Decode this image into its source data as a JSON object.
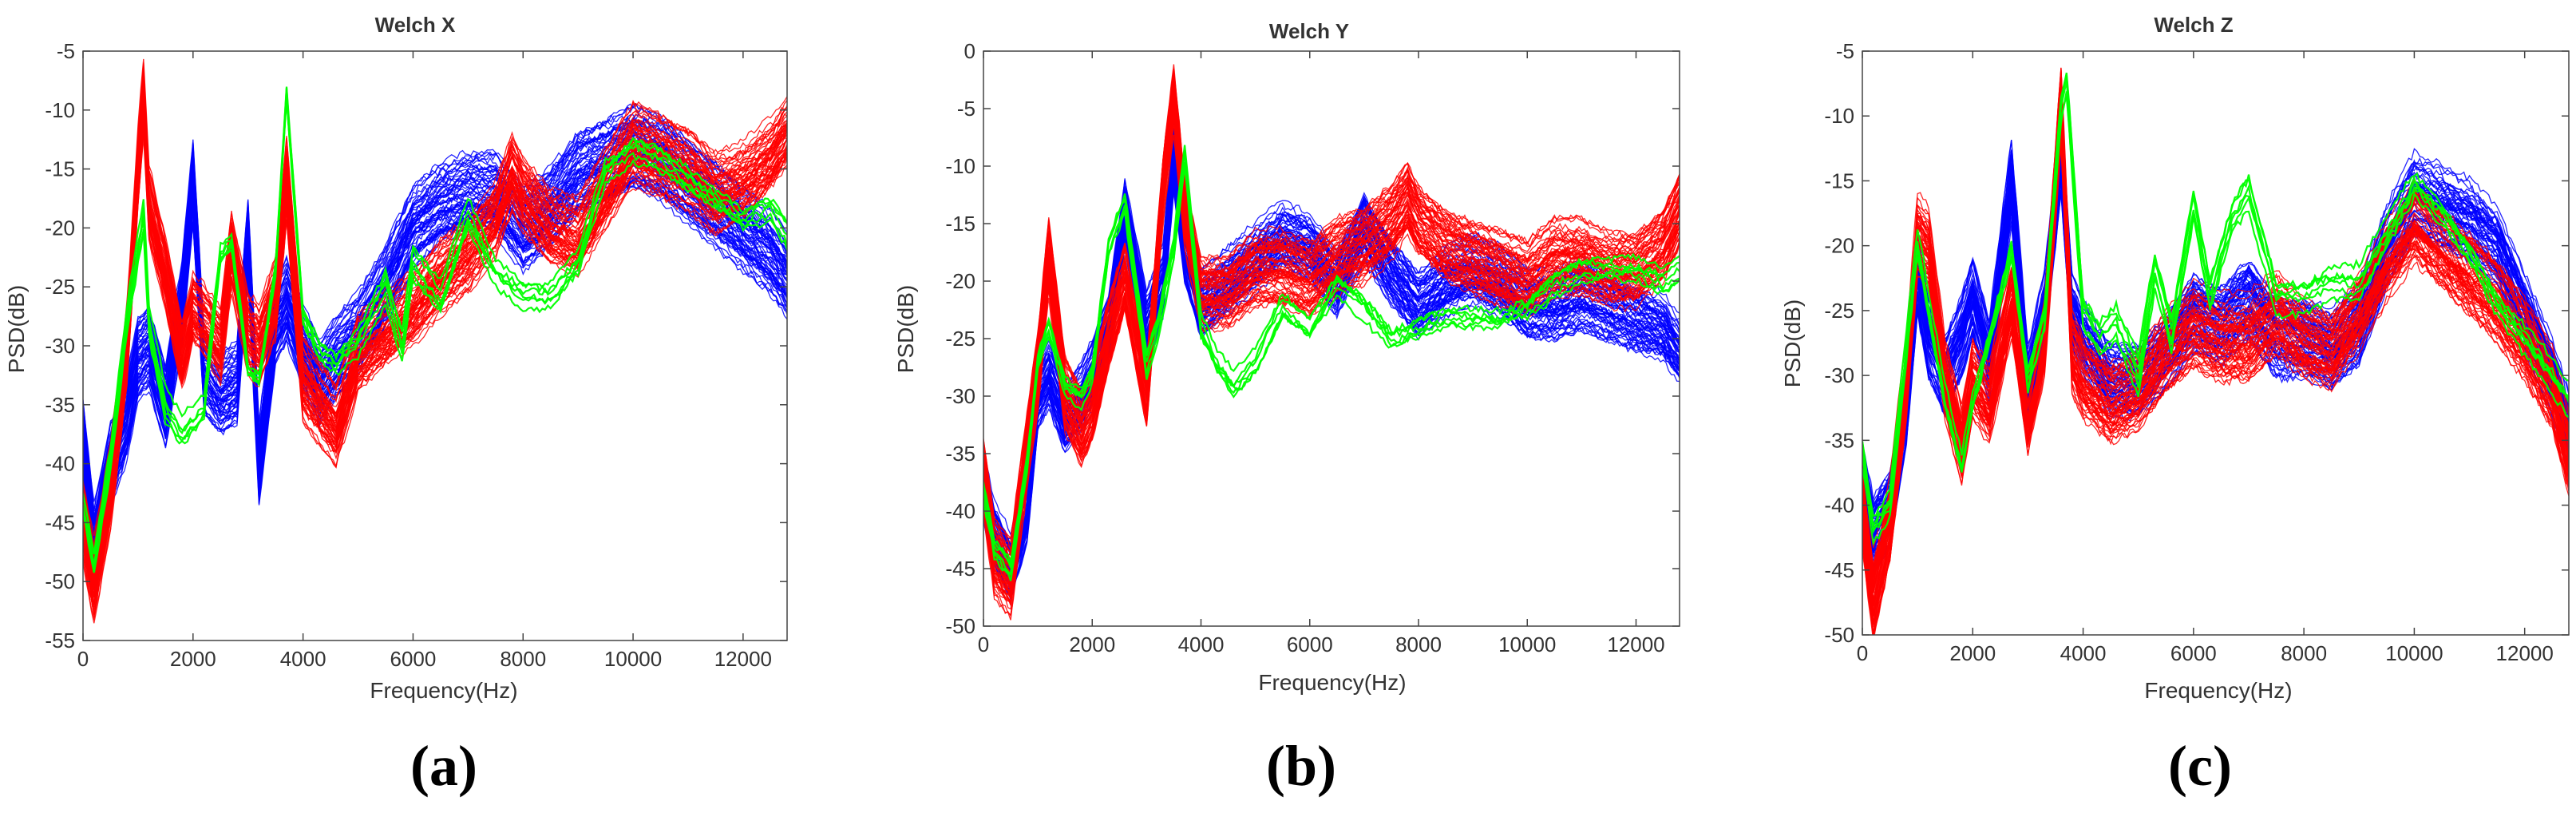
{
  "figure": {
    "panel_labels": [
      "(a)",
      "(b)",
      "(c)"
    ],
    "series_colors": {
      "blue": "#0000ff",
      "red": "#ff0000",
      "green": "#00ff00"
    }
  },
  "chart_data": [
    {
      "type": "line",
      "title": "Welch X",
      "xlabel": "Frequency(Hz)",
      "ylabel": "PSD(dB)",
      "xlim": [
        0,
        12800
      ],
      "ylim": [
        -55,
        -5
      ],
      "xticks": [
        0,
        2000,
        4000,
        6000,
        8000,
        10000,
        12000
      ],
      "yticks": [
        -55,
        -50,
        -45,
        -40,
        -35,
        -30,
        -25,
        -20,
        -15,
        -10,
        -5
      ],
      "grid": false,
      "series": [
        {
          "color": "#0000ff",
          "count": 60,
          "spread": 3.0,
          "x": [
            0,
            200,
            500,
            800,
            1000,
            1200,
            1500,
            1800,
            2000,
            2200,
            2500,
            2800,
            3000,
            3200,
            3500,
            3700,
            4000,
            4300,
            4600,
            5000,
            5500,
            6000,
            6500,
            7000,
            7500,
            8000,
            8500,
            9000,
            9500,
            10000,
            10500,
            11000,
            11500,
            12000,
            12500,
            12800
          ],
          "y": [
            -38,
            -47,
            -40,
            -36,
            -31,
            -30,
            -35,
            -26,
            -16,
            -32,
            -34,
            -33,
            -21,
            -40,
            -28,
            -26,
            -30,
            -33,
            -31,
            -29,
            -25,
            -20,
            -18,
            -17,
            -17,
            -20,
            -18,
            -15,
            -14,
            -13,
            -14,
            -16,
            -18,
            -20,
            -22,
            -24
          ]
        },
        {
          "color": "#ff0000",
          "count": 60,
          "spread": 3.0,
          "x": [
            0,
            200,
            500,
            800,
            1000,
            1100,
            1200,
            1500,
            1800,
            2000,
            2200,
            2500,
            2700,
            3000,
            3200,
            3500,
            3700,
            4000,
            4300,
            4600,
            5000,
            5500,
            6000,
            6500,
            7000,
            7500,
            7800,
            8000,
            8500,
            9000,
            9500,
            10000,
            10500,
            11000,
            11500,
            12000,
            12500,
            12800
          ],
          "y": [
            -45,
            -50,
            -42,
            -30,
            -15,
            -9,
            -18,
            -24,
            -31,
            -27,
            -28,
            -30,
            -22,
            -29,
            -30,
            -26,
            -16,
            -33,
            -35,
            -37,
            -31,
            -29,
            -27,
            -24,
            -22,
            -19,
            -15,
            -17,
            -20,
            -21,
            -17,
            -13,
            -14,
            -15,
            -17,
            -16,
            -14,
            -12
          ]
        },
        {
          "color": "#00ff00",
          "count": 6,
          "spread": 0.8,
          "x": [
            0,
            200,
            500,
            800,
            1000,
            1100,
            1200,
            1500,
            1800,
            2000,
            2200,
            2500,
            2700,
            3000,
            3200,
            3500,
            3700,
            4000,
            4300,
            4600,
            5000,
            5200,
            5500,
            5800,
            6000,
            6500,
            7000,
            7500,
            8000,
            8500,
            9000,
            9500,
            10000,
            10500,
            11000,
            11500,
            12000,
            12500,
            12800
          ],
          "y": [
            -44,
            -49,
            -40,
            -28,
            -22,
            -19,
            -28,
            -35,
            -37,
            -36,
            -35,
            -22,
            -21,
            -32,
            -33,
            -24,
            -9,
            -28,
            -31,
            -32,
            -30,
            -28,
            -25,
            -30,
            -23,
            -26,
            -19,
            -24,
            -26,
            -26,
            -23,
            -15,
            -13,
            -14,
            -16,
            -18,
            -20,
            -19,
            -21
          ]
        }
      ]
    },
    {
      "type": "line",
      "title": "Welch Y",
      "xlabel": "Frequency(Hz)",
      "ylabel": "PSD(dB)",
      "xlim": [
        0,
        12800
      ],
      "ylim": [
        -50,
        0
      ],
      "xticks": [
        0,
        2000,
        4000,
        6000,
        8000,
        10000,
        12000
      ],
      "yticks": [
        -50,
        -45,
        -40,
        -35,
        -30,
        -25,
        -20,
        -15,
        -10,
        -5,
        0
      ],
      "grid": false,
      "series": [
        {
          "color": "#0000ff",
          "count": 60,
          "spread": 2.5,
          "x": [
            0,
            200,
            500,
            800,
            1000,
            1200,
            1500,
            1800,
            2000,
            2300,
            2600,
            3000,
            3300,
            3500,
            3700,
            4000,
            4500,
            5000,
            5500,
            6000,
            6500,
            7000,
            7500,
            8000,
            8500,
            9000,
            9500,
            10000,
            10500,
            11000,
            11500,
            12000,
            12500,
            12800
          ],
          "y": [
            -38,
            -42,
            -45,
            -40,
            -30,
            -28,
            -32,
            -30,
            -28,
            -24,
            -14,
            -24,
            -20,
            -9,
            -17,
            -22,
            -20,
            -18,
            -16,
            -17,
            -20,
            -15,
            -19,
            -22,
            -20,
            -19,
            -20,
            -22,
            -22,
            -21,
            -22,
            -23,
            -24,
            -26
          ]
        },
        {
          "color": "#ff0000",
          "count": 60,
          "spread": 2.8,
          "x": [
            0,
            200,
            500,
            800,
            1000,
            1200,
            1500,
            1800,
            2000,
            2300,
            2600,
            3000,
            3300,
            3500,
            3700,
            4000,
            4500,
            5000,
            5500,
            6000,
            6500,
            7000,
            7500,
            7800,
            8000,
            8500,
            9000,
            9500,
            10000,
            10500,
            11000,
            11500,
            12000,
            12500,
            12800
          ],
          "y": [
            -37,
            -44,
            -46,
            -35,
            -28,
            -18,
            -30,
            -33,
            -31,
            -25,
            -20,
            -30,
            -12,
            -4,
            -14,
            -21,
            -21,
            -19,
            -19,
            -20,
            -18,
            -17,
            -15,
            -13,
            -15,
            -17,
            -18,
            -19,
            -20,
            -18,
            -18,
            -19,
            -19,
            -17,
            -14
          ]
        },
        {
          "color": "#00ff00",
          "count": 6,
          "spread": 0.8,
          "x": [
            0,
            200,
            500,
            800,
            1000,
            1200,
            1500,
            1800,
            2000,
            2300,
            2600,
            3000,
            3200,
            3500,
            3700,
            4000,
            4300,
            4600,
            5000,
            5500,
            6000,
            6500,
            7000,
            7500,
            8000,
            8500,
            9000,
            9500,
            10000,
            10500,
            11000,
            11500,
            12000,
            12500,
            12800
          ],
          "y": [
            -38,
            -43,
            -45,
            -36,
            -27,
            -24,
            -29,
            -30,
            -28,
            -17,
            -13,
            -27,
            -24,
            -17,
            -9,
            -24,
            -27,
            -29,
            -27,
            -22,
            -24,
            -20,
            -22,
            -25,
            -24,
            -23,
            -23,
            -23,
            -22,
            -20,
            -19,
            -19,
            -19,
            -20,
            -19
          ]
        }
      ]
    },
    {
      "type": "line",
      "title": "Welch Z",
      "xlabel": "Frequency(Hz)",
      "ylabel": "PSD(dB)",
      "xlim": [
        0,
        12800
      ],
      "ylim": [
        -50,
        -5
      ],
      "xticks": [
        0,
        2000,
        4000,
        6000,
        8000,
        10000,
        12000
      ],
      "yticks": [
        -50,
        -45,
        -40,
        -35,
        -30,
        -25,
        -20,
        -15,
        -10,
        -5
      ],
      "grid": false,
      "series": [
        {
          "color": "#0000ff",
          "count": 60,
          "spread": 2.5,
          "x": [
            0,
            200,
            500,
            800,
            1000,
            1200,
            1500,
            1800,
            2000,
            2300,
            2700,
            3000,
            3300,
            3600,
            3800,
            4000,
            4500,
            5000,
            5500,
            6000,
            6500,
            7000,
            7500,
            8000,
            8500,
            9000,
            9500,
            10000,
            10500,
            11000,
            11500,
            12000,
            12500,
            12800
          ],
          "y": [
            -38,
            -42,
            -40,
            -32,
            -22,
            -27,
            -30,
            -27,
            -24,
            -29,
            -15,
            -31,
            -25,
            -13,
            -25,
            -27,
            -30,
            -30,
            -28,
            -25,
            -26,
            -24,
            -27,
            -27,
            -28,
            -26,
            -20,
            -16,
            -17,
            -18,
            -20,
            -25,
            -30,
            -34
          ]
        },
        {
          "color": "#ff0000",
          "count": 60,
          "spread": 2.8,
          "x": [
            0,
            200,
            500,
            800,
            1000,
            1200,
            1500,
            1800,
            2000,
            2300,
            2700,
            3000,
            3300,
            3600,
            3800,
            4000,
            4500,
            5000,
            5500,
            6000,
            6500,
            7000,
            7500,
            8000,
            8500,
            9000,
            9500,
            10000,
            10500,
            11000,
            11500,
            12000,
            12500,
            12800
          ],
          "y": [
            -40,
            -47,
            -41,
            -30,
            -19,
            -20,
            -30,
            -35,
            -30,
            -32,
            -24,
            -33,
            -27,
            -9,
            -28,
            -30,
            -32,
            -31,
            -28,
            -26,
            -27,
            -27,
            -25,
            -27,
            -28,
            -25,
            -21,
            -18,
            -20,
            -22,
            -24,
            -27,
            -31,
            -36
          ]
        },
        {
          "color": "#00ff00",
          "count": 6,
          "spread": 0.8,
          "x": [
            0,
            200,
            500,
            800,
            1000,
            1200,
            1500,
            1800,
            2000,
            2300,
            2700,
            3000,
            3300,
            3600,
            3700,
            4000,
            4300,
            4600,
            5000,
            5300,
            5600,
            6000,
            6300,
            6700,
            7000,
            7500,
            8000,
            8500,
            9000,
            9500,
            10000,
            10500,
            11000,
            11500,
            12000,
            12500,
            12800
          ],
          "y": [
            -36,
            -42,
            -40,
            -28,
            -20,
            -25,
            -32,
            -37,
            -32,
            -27,
            -20,
            -30,
            -25,
            -9,
            -7,
            -25,
            -27,
            -26,
            -30,
            -22,
            -27,
            -17,
            -24,
            -18,
            -16,
            -24,
            -24,
            -23,
            -23,
            -19,
            -15,
            -17,
            -20,
            -24,
            -27,
            -30,
            -32
          ]
        }
      ]
    }
  ]
}
